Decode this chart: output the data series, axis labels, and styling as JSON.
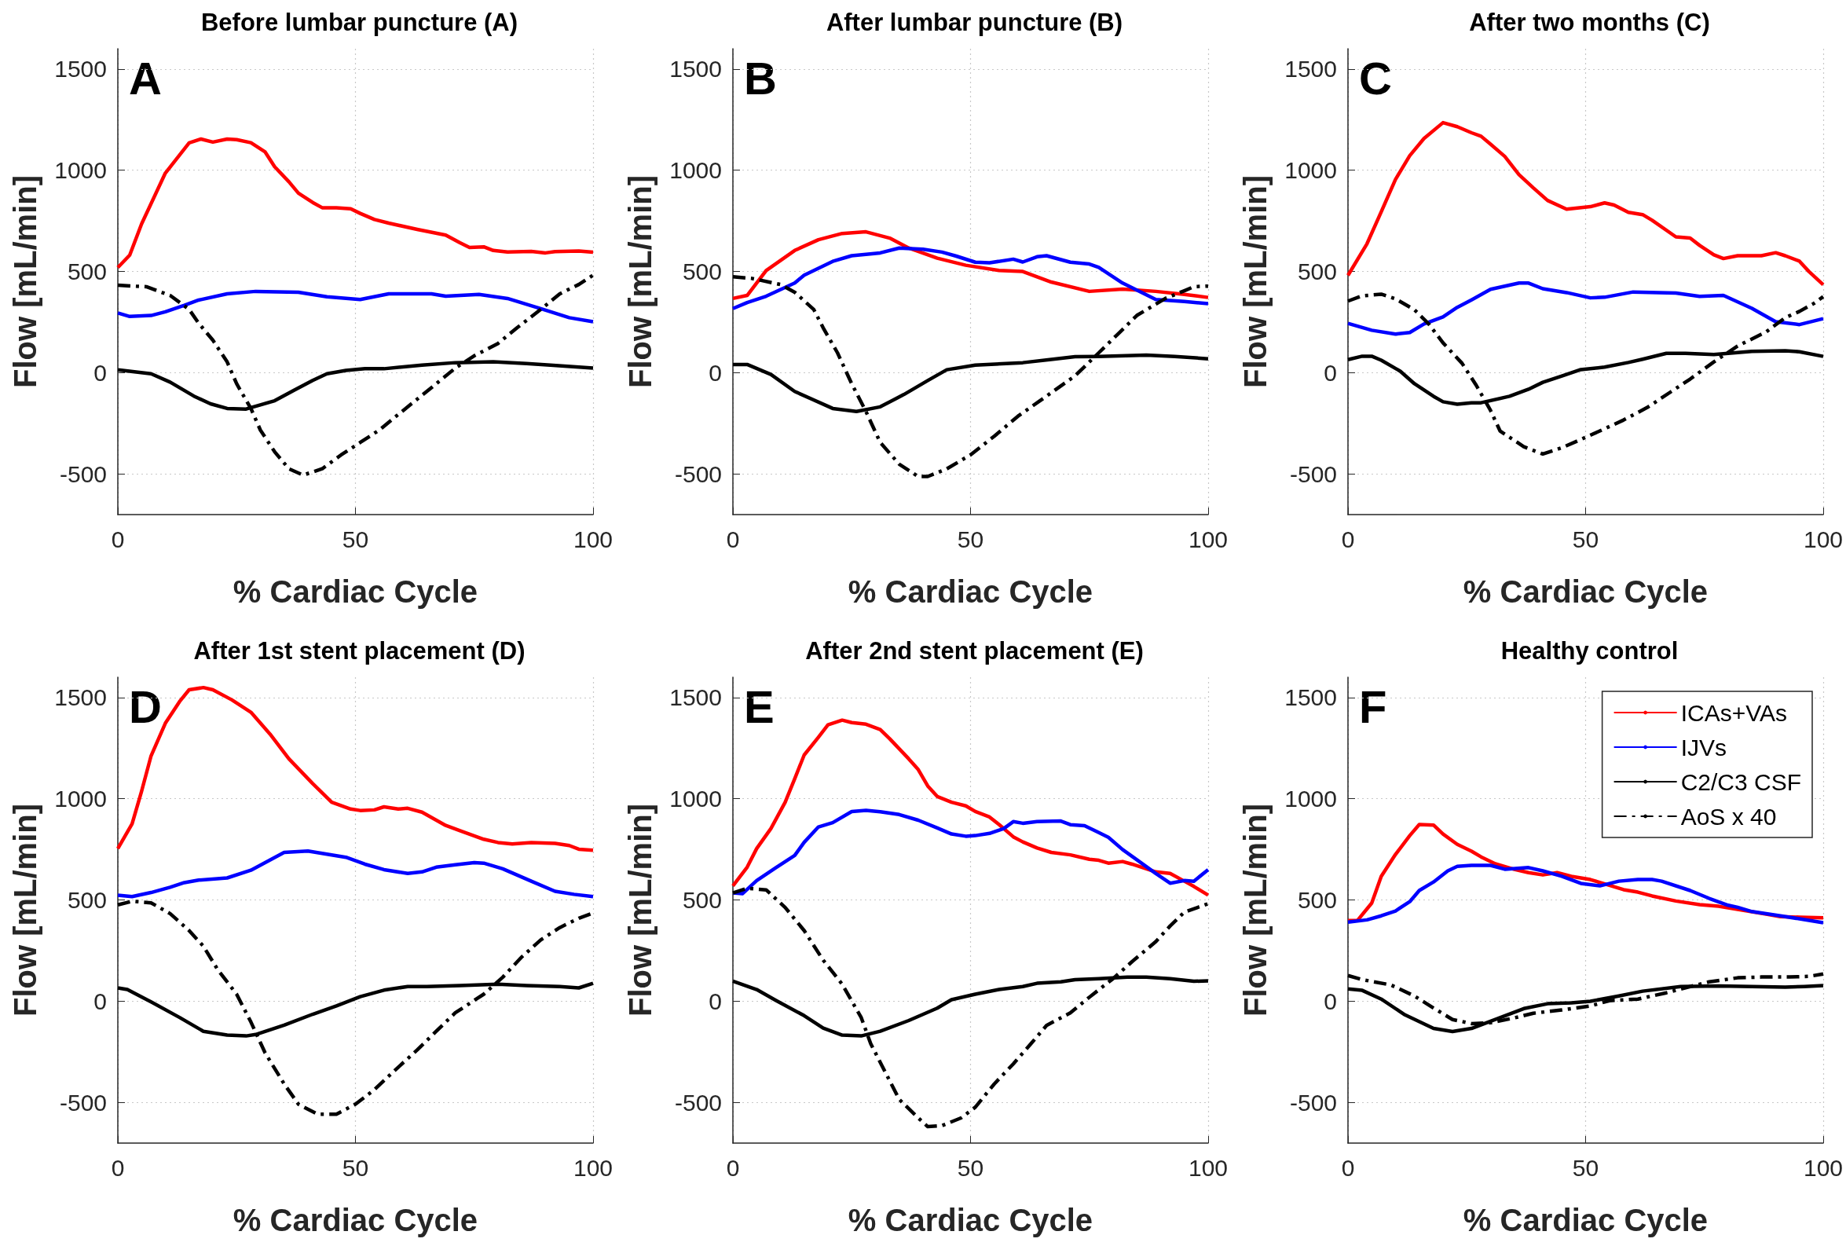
{
  "chart_data": [
    {
      "type": "line",
      "title": "Before lumbar puncture (A)",
      "xlabel": "% Cardiac Cycle",
      "ylabel": "Flow [mL/min]",
      "annotations": [
        "A"
      ],
      "xlim": [
        0,
        100
      ],
      "xticks": [
        0,
        50,
        100
      ],
      "ylim": [
        -700,
        1600
      ],
      "yticks": [
        -500,
        0,
        500,
        1000,
        1500
      ],
      "grid": true,
      "marker": "none",
      "line_style": "solid",
      "series": [
        {
          "color": "#ff0000",
          "x": [
            0,
            2.5,
            5,
            10,
            15,
            17.5,
            20,
            23,
            25,
            28,
            31,
            33,
            36,
            38,
            41,
            43,
            46,
            49,
            51,
            54,
            57,
            63,
            69,
            72,
            74,
            77,
            79,
            82,
            87,
            90,
            92,
            97,
            100
          ],
          "values": [
            520,
            581,
            735,
            986,
            1135,
            1154,
            1139,
            1154,
            1151,
            1136,
            1090,
            1017,
            943,
            887,
            841,
            815,
            815,
            810,
            787,
            757,
            739,
            708,
            680,
            642,
            619,
            622,
            604,
            596,
            599,
            592,
            598,
            601,
            595
          ]
        },
        {
          "color": "#0000ff",
          "x": [
            0,
            2.5,
            7,
            10,
            14,
            17,
            23,
            29,
            38,
            44,
            51,
            57,
            66,
            69,
            76,
            82,
            89,
            95,
            100
          ],
          "values": [
            295,
            278,
            283,
            301,
            333,
            359,
            390,
            402,
            398,
            375,
            362,
            390,
            390,
            378,
            387,
            367,
            317,
            272,
            252
          ]
        },
        {
          "color": "#000000",
          "x": [
            0,
            7,
            11,
            16,
            19.5,
            23,
            27,
            33,
            37,
            41,
            44,
            48,
            52,
            56,
            64,
            71,
            79,
            86,
            91,
            100
          ],
          "values": [
            15,
            -5,
            -46,
            -115,
            -153,
            -176,
            -179,
            -138,
            -87,
            -38,
            -5,
            12,
            20,
            20,
            38,
            50,
            54,
            46,
            38,
            23
          ]
        },
        {
          "color": "#000000",
          "line_style": "dashed",
          "x": [
            0,
            3,
            6,
            11,
            15,
            17,
            20,
            23,
            25,
            28,
            30,
            33,
            36,
            39,
            43,
            47,
            51,
            55,
            59,
            63,
            67,
            71,
            75,
            80,
            84,
            89,
            93,
            97,
            100
          ],
          "values": [
            433,
            428,
            425,
            382,
            313,
            245,
            161,
            54,
            -54,
            -176,
            -283,
            -390,
            -474,
            -505,
            -474,
            -405,
            -344,
            -283,
            -206,
            -130,
            -54,
            23,
            84,
            145,
            222,
            313,
            390,
            436,
            482
          ]
        }
      ]
    },
    {
      "type": "line",
      "title": "After lumbar puncture (B)",
      "xlabel": "% Cardiac Cycle",
      "ylabel": "Flow [mL/min]",
      "annotations": [
        "B"
      ],
      "xlim": [
        0,
        100
      ],
      "xticks": [
        0,
        50,
        100
      ],
      "ylim": [
        -700,
        1600
      ],
      "yticks": [
        -500,
        0,
        500,
        1000,
        1500
      ],
      "grid": true,
      "marker": "none",
      "line_style": "solid",
      "series": [
        {
          "color": "#ff0000",
          "x": [
            0,
            3,
            7,
            13,
            18,
            23,
            28,
            33,
            37,
            43,
            49,
            56,
            61,
            67,
            75,
            82,
            89,
            95,
            100
          ],
          "values": [
            367,
            382,
            505,
            604,
            657,
            688,
            696,
            665,
            616,
            566,
            531,
            505,
            500,
            448,
            402,
            413,
            402,
            387,
            372
          ]
        },
        {
          "color": "#0000ff",
          "x": [
            0,
            3,
            7,
            13,
            15,
            21,
            25,
            31,
            35,
            40,
            44,
            47,
            51,
            54,
            59,
            61,
            64,
            66,
            71,
            75,
            77,
            82,
            89,
            95,
            100
          ],
          "values": [
            317,
            347,
            378,
            443,
            482,
            550,
            578,
            592,
            616,
            610,
            596,
            576,
            546,
            543,
            561,
            547,
            573,
            578,
            546,
            537,
            520,
            443,
            362,
            352,
            341
          ]
        },
        {
          "color": "#000000",
          "x": [
            0,
            3,
            8,
            13,
            21,
            26,
            31,
            36,
            41,
            45,
            51,
            61,
            67,
            72,
            77,
            87,
            93,
            100
          ],
          "values": [
            41,
            41,
            -8,
            -92,
            -176,
            -191,
            -168,
            -107,
            -38,
            15,
            38,
            50,
            66,
            80,
            81,
            87,
            81,
            69
          ]
        },
        {
          "color": "#000000",
          "line_style": "dashed",
          "x": [
            0,
            4,
            10,
            13,
            17,
            19,
            22,
            25,
            28,
            31,
            35,
            39,
            41,
            45,
            50,
            55,
            60,
            66,
            72,
            77,
            81,
            85,
            91,
            95,
            97,
            100
          ],
          "values": [
            474,
            466,
            436,
            398,
            313,
            222,
            99,
            -54,
            -191,
            -344,
            -451,
            -512,
            -512,
            -474,
            -405,
            -313,
            -214,
            -115,
            -15,
            99,
            191,
            283,
            367,
            405,
            425,
            428
          ]
        }
      ]
    },
    {
      "type": "line",
      "title": "After two months (C)",
      "xlabel": "% Cardiac Cycle",
      "ylabel": "Flow [mL/min]",
      "annotations": [
        "C"
      ],
      "xlim": [
        0,
        100
      ],
      "xticks": [
        0,
        50,
        100
      ],
      "ylim": [
        -700,
        1600
      ],
      "yticks": [
        -500,
        0,
        500,
        1000,
        1500
      ],
      "grid": true,
      "marker": "none",
      "line_style": "solid",
      "series": [
        {
          "color": "#ff0000",
          "x": [
            0,
            4,
            7,
            10,
            13,
            16,
            20,
            23,
            26,
            28,
            30,
            33,
            36,
            39,
            42,
            46,
            51,
            54,
            56,
            59,
            62,
            64,
            69,
            72,
            74,
            77,
            79,
            82,
            87,
            90,
            92,
            95,
            97,
            100
          ],
          "values": [
            481,
            637,
            795,
            955,
            1072,
            1157,
            1235,
            1215,
            1185,
            1168,
            1129,
            1068,
            978,
            913,
            851,
            808,
            820,
            839,
            828,
            792,
            781,
            753,
            671,
            665,
            629,
            582,
            564,
            578,
            578,
            593,
            578,
            551,
            500,
            435
          ]
        },
        {
          "color": "#0000ff",
          "x": [
            0,
            5,
            10,
            13,
            16,
            20,
            23,
            26,
            30,
            36,
            38,
            41,
            46,
            51,
            54,
            60,
            69,
            74,
            79,
            85,
            90,
            95,
            100
          ],
          "values": [
            244,
            210,
            191,
            199,
            241,
            276,
            323,
            360,
            412,
            443,
            443,
            415,
            396,
            370,
            373,
            399,
            394,
            377,
            382,
            318,
            252,
            238,
            267
          ]
        },
        {
          "color": "#000000",
          "x": [
            0,
            3,
            5,
            7,
            11,
            14,
            18,
            20,
            23,
            26,
            28,
            34,
            38,
            41,
            45,
            49,
            54,
            59,
            62,
            67,
            71,
            77,
            85,
            92,
            95,
            100
          ],
          "values": [
            65,
            82,
            82,
            62,
            8,
            -54,
            -116,
            -143,
            -155,
            -148,
            -148,
            -116,
            -81,
            -47,
            -16,
            16,
            28,
            51,
            67,
            96,
            96,
            90,
            106,
            109,
            104,
            81
          ]
        },
        {
          "color": "#000000",
          "line_style": "dashed",
          "x": [
            0,
            3,
            7,
            10,
            14,
            17,
            20,
            24,
            27,
            30,
            32,
            37,
            41,
            45,
            49,
            53,
            58,
            63,
            68,
            72,
            77,
            82,
            88,
            92,
            95,
            98,
            100
          ],
          "values": [
            354,
            380,
            388,
            365,
            311,
            241,
            148,
            47,
            -62,
            -186,
            -287,
            -365,
            -401,
            -370,
            -329,
            -287,
            -233,
            -171,
            -93,
            -31,
            54,
            132,
            202,
            272,
            303,
            342,
            376
          ]
        }
      ]
    },
    {
      "type": "line",
      "title": "After 1st stent placement (D)",
      "xlabel": "% Cardiac Cycle",
      "ylabel": "Flow [mL/min]",
      "annotations": [
        "D"
      ],
      "xlim": [
        0,
        100
      ],
      "xticks": [
        0,
        50,
        100
      ],
      "ylim": [
        -700,
        1600
      ],
      "yticks": [
        -500,
        0,
        500,
        1000,
        1500
      ],
      "grid": true,
      "marker": "none",
      "line_style": "solid",
      "series": [
        {
          "color": "#ff0000",
          "x": [
            0,
            3,
            5,
            7,
            10,
            13,
            15,
            18,
            20,
            24,
            28,
            32,
            36,
            41,
            45,
            49,
            51,
            54,
            56,
            59,
            61,
            64,
            69,
            72,
            77,
            80,
            83,
            87,
            92,
            95,
            97,
            100
          ],
          "values": [
            754,
            876,
            1037,
            1212,
            1373,
            1480,
            1538,
            1549,
            1538,
            1488,
            1427,
            1320,
            1197,
            1075,
            983,
            949,
            942,
            945,
            960,
            949,
            953,
            934,
            868,
            842,
            800,
            784,
            777,
            784,
            780,
            769,
            751,
            746
          ]
        },
        {
          "color": "#0000ff",
          "x": [
            0,
            3,
            7,
            11,
            14,
            17,
            23,
            28,
            31,
            35,
            40,
            44,
            48,
            52,
            56,
            61,
            64,
            67,
            71,
            75,
            77,
            81,
            87,
            92,
            96,
            100
          ],
          "values": [
            524,
            517,
            537,
            563,
            586,
            598,
            609,
            647,
            685,
            735,
            742,
            726,
            711,
            677,
            650,
            631,
            639,
            662,
            674,
            685,
            682,
            654,
            593,
            543,
            528,
            517
          ]
        },
        {
          "color": "#000000",
          "x": [
            0,
            2,
            7,
            13,
            18,
            23,
            27,
            29,
            35,
            41,
            46,
            51,
            56,
            61,
            65,
            72,
            80,
            86,
            93,
            97,
            100
          ],
          "values": [
            66,
            58,
            -3,
            -80,
            -148,
            -167,
            -171,
            -164,
            -118,
            -64,
            -23,
            23,
            55,
            73,
            73,
            78,
            84,
            78,
            73,
            66,
            89
          ]
        },
        {
          "color": "#000000",
          "line_style": "dashed",
          "x": [
            0,
            3,
            7,
            11,
            15,
            18,
            21,
            25,
            28,
            31,
            35,
            38,
            42,
            46,
            50,
            54,
            58,
            63,
            67,
            71,
            77,
            81,
            85,
            89,
            93,
            97,
            100
          ],
          "values": [
            476,
            494,
            486,
            433,
            349,
            272,
            157,
            35,
            -102,
            -255,
            -408,
            -508,
            -557,
            -557,
            -508,
            -436,
            -347,
            -240,
            -148,
            -57,
            35,
            119,
            219,
            303,
            364,
            410,
            436
          ]
        }
      ]
    },
    {
      "type": "line",
      "title": "After 2nd stent placement (E)",
      "xlabel": "% Cardiac Cycle",
      "ylabel": "Flow [mL/min]",
      "annotations": [
        "E"
      ],
      "xlim": [
        0,
        100
      ],
      "xticks": [
        0,
        50,
        100
      ],
      "ylim": [
        -700,
        1600
      ],
      "yticks": [
        -500,
        0,
        500,
        1000,
        1500
      ],
      "grid": true,
      "marker": "none",
      "line_style": "solid",
      "series": [
        {
          "color": "#ff0000",
          "x": [
            0,
            3,
            5,
            8,
            11,
            13,
            15,
            18,
            20,
            23,
            25,
            28,
            31,
            33,
            37,
            39,
            41,
            43,
            46,
            49,
            51,
            54,
            56,
            59,
            61,
            64,
            67,
            71,
            75,
            77,
            79,
            82,
            84,
            89,
            92,
            95,
            97,
            100
          ],
          "values": [
            570,
            662,
            754,
            853,
            983,
            1098,
            1216,
            1304,
            1365,
            1388,
            1376,
            1368,
            1342,
            1296,
            1197,
            1144,
            1063,
            1011,
            983,
            965,
            937,
            910,
            873,
            812,
            787,
            757,
            735,
            723,
            701,
            696,
            682,
            690,
            677,
            639,
            631,
            593,
            567,
            524
          ]
        },
        {
          "color": "#0000ff",
          "x": [
            0,
            2,
            5,
            9,
            13,
            15,
            18,
            21,
            25,
            28,
            31,
            35,
            39,
            43,
            46,
            49,
            51,
            54,
            57,
            59,
            61,
            64,
            69,
            71,
            74,
            77,
            79,
            82,
            85,
            89,
            92,
            95,
            97,
            100
          ],
          "values": [
            535,
            531,
            596,
            659,
            720,
            785,
            861,
            882,
            937,
            943,
            936,
            922,
            894,
            856,
            826,
            815,
            818,
            829,
            853,
            887,
            879,
            887,
            890,
            872,
            867,
            833,
            810,
            749,
            699,
            631,
            583,
            596,
            593,
            650
          ]
        },
        {
          "color": "#000000",
          "x": [
            0,
            5,
            9,
            15,
            19,
            23,
            27,
            31,
            37,
            43,
            46,
            51,
            56,
            61,
            64,
            69,
            72,
            77,
            83,
            87,
            92,
            97,
            100
          ],
          "values": [
            99,
            58,
            5,
            -71,
            -132,
            -167,
            -171,
            -148,
            -95,
            -34,
            8,
            35,
            58,
            73,
            89,
            96,
            107,
            112,
            119,
            119,
            112,
            99,
            101
          ]
        },
        {
          "color": "#000000",
          "line_style": "dashed",
          "x": [
            0,
            3,
            7,
            11,
            15,
            19,
            23,
            27,
            29,
            32,
            35,
            39,
            41,
            44,
            48,
            51,
            55,
            59,
            63,
            66,
            71,
            75,
            80,
            84,
            89,
            92,
            95,
            100
          ],
          "values": [
            535,
            558,
            550,
            463,
            349,
            203,
            84,
            -80,
            -209,
            -347,
            -484,
            -576,
            -619,
            -614,
            -576,
            -523,
            -408,
            -309,
            -202,
            -119,
            -57,
            20,
            112,
            196,
            295,
            372,
            440,
            482
          ]
        }
      ]
    },
    {
      "type": "line",
      "title": "Healthy control",
      "xlabel": "% Cardiac Cycle",
      "ylabel": "Flow [mL/min]",
      "annotations": [
        "F"
      ],
      "xlim": [
        0,
        100
      ],
      "xticks": [
        0,
        50,
        100
      ],
      "ylim": [
        -700,
        1600
      ],
      "yticks": [
        -500,
        0,
        500,
        1000,
        1500
      ],
      "grid": true,
      "marker": "none",
      "line_style": "solid",
      "legend": "top right",
      "series": [
        {
          "name": "ICAs+VAs",
          "color": "#ff0000",
          "x": [
            0,
            2,
            5,
            7,
            10,
            13,
            15,
            18,
            20,
            23,
            26,
            28,
            31,
            35,
            38,
            41,
            44,
            47,
            51,
            55,
            58,
            61,
            64,
            69,
            74,
            78,
            84,
            88,
            91,
            95,
            100
          ],
          "values": [
            399,
            399,
            485,
            617,
            725,
            818,
            873,
            870,
            826,
            775,
            741,
            713,
            679,
            651,
            635,
            624,
            635,
            617,
            601,
            573,
            551,
            539,
            520,
            495,
            477,
            469,
            446,
            430,
            418,
            415,
            412
          ]
        },
        {
          "name": "IJVs",
          "color": "#0000ff",
          "x": [
            0,
            4,
            7,
            10,
            13,
            15,
            18,
            21,
            23,
            26,
            30,
            33,
            38,
            41,
            45,
            49,
            53,
            57,
            61,
            64,
            66,
            72,
            76,
            80,
            82,
            85,
            91,
            95,
            100
          ],
          "values": [
            391,
            402,
            422,
            446,
            492,
            547,
            589,
            644,
            666,
            671,
            671,
            652,
            660,
            644,
            617,
            582,
            570,
            593,
            601,
            601,
            593,
            547,
            508,
            474,
            464,
            443,
            422,
            407,
            388
          ]
        },
        {
          "name": "C2/C3 CSF",
          "color": "#000000",
          "x": [
            0,
            3,
            7,
            12,
            18,
            22,
            26,
            31,
            37,
            42,
            47,
            51,
            57,
            62,
            70,
            78,
            85,
            92,
            96,
            100
          ],
          "values": [
            61,
            54,
            11,
            -67,
            -134,
            -149,
            -134,
            -90,
            -36,
            -12,
            -8,
            0,
            26,
            50,
            73,
            76,
            73,
            70,
            73,
            78
          ]
        },
        {
          "name": "AoS x 40",
          "color": "#000000",
          "line_style": "dashed",
          "x": [
            0,
            3,
            9,
            14,
            18,
            22,
            26,
            30,
            35,
            39,
            45,
            51,
            55,
            61,
            67,
            72,
            76,
            82,
            87,
            93,
            97,
            100
          ],
          "values": [
            127,
            107,
            81,
            26,
            -33,
            -90,
            -110,
            -106,
            -82,
            -59,
            -43,
            -23,
            3,
            11,
            42,
            73,
            96,
            116,
            120,
            120,
            123,
            135
          ]
        }
      ]
    }
  ]
}
